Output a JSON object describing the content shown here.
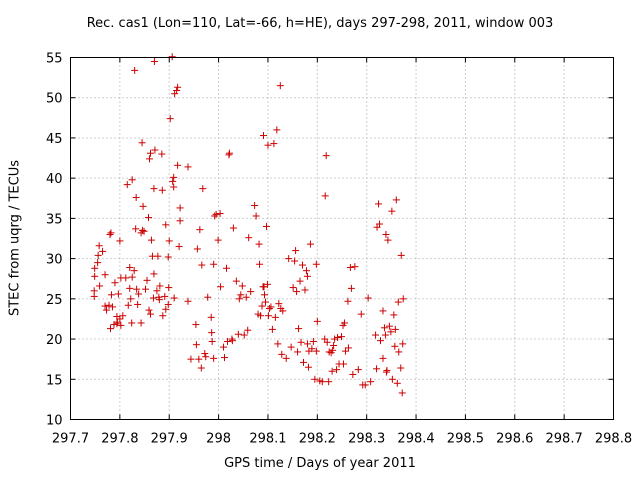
{
  "chart_data": {
    "type": "scatter",
    "title": "Rec. cas1 (Lon=110, Lat=-66, h=HE), days 297-298, 2011, window 003",
    "xlabel": "GPS time / Days of year 2011",
    "ylabel": "STEC from uqrg / TECUs",
    "xlim": [
      297.7,
      298.8
    ],
    "ylim": [
      10,
      55
    ],
    "xticks": [
      "297.7",
      "297.8",
      "297.9",
      "298",
      "298.1",
      "298.2",
      "298.3",
      "298.4",
      "298.5",
      "298.6",
      "298.7",
      "298.8"
    ],
    "yticks": [
      "10",
      "15",
      "20",
      "25",
      "30",
      "35",
      "40",
      "45",
      "50",
      "55"
    ],
    "marker": "+",
    "marker_color": "#cc0000",
    "grid": true,
    "points": [
      [
        297.748,
        25.3
      ],
      [
        297.748,
        26.0
      ],
      [
        297.749,
        27.8
      ],
      [
        297.749,
        28.8
      ],
      [
        297.755,
        29.5
      ],
      [
        297.756,
        30.4
      ],
      [
        297.758,
        31.6
      ],
      [
        297.759,
        26.6
      ],
      [
        297.765,
        30.9
      ],
      [
        297.77,
        24.1
      ],
      [
        297.77,
        28.0
      ],
      [
        297.773,
        23.6
      ],
      [
        297.778,
        24.2
      ],
      [
        297.78,
        33.0
      ],
      [
        297.781,
        21.3
      ],
      [
        297.782,
        33.2
      ],
      [
        297.783,
        25.5
      ],
      [
        297.785,
        24.0
      ],
      [
        297.788,
        21.8
      ],
      [
        297.79,
        27.0
      ],
      [
        297.794,
        22.8
      ],
      [
        297.794,
        21.9
      ],
      [
        297.795,
        22.1
      ],
      [
        297.797,
        25.6
      ],
      [
        297.8,
        22.5
      ],
      [
        297.8,
        32.2
      ],
      [
        297.802,
        21.7
      ],
      [
        297.802,
        27.6
      ],
      [
        297.806,
        22.9
      ],
      [
        297.812,
        27.6
      ],
      [
        297.815,
        39.2
      ],
      [
        297.817,
        24.2
      ],
      [
        297.82,
        26.3
      ],
      [
        297.82,
        28.9
      ],
      [
        297.822,
        25.0
      ],
      [
        297.824,
        22.0
      ],
      [
        297.825,
        39.8
      ],
      [
        297.825,
        27.7
      ],
      [
        297.829,
        28.5
      ],
      [
        297.83,
        53.4
      ],
      [
        297.832,
        33.7
      ],
      [
        297.833,
        37.6
      ],
      [
        297.834,
        26.2
      ],
      [
        297.836,
        24.3
      ],
      [
        297.838,
        25.6
      ],
      [
        297.843,
        33.2
      ],
      [
        297.843,
        22.0
      ],
      [
        297.845,
        44.4
      ],
      [
        297.846,
        33.5
      ],
      [
        297.847,
        36.5
      ],
      [
        297.849,
        33.4
      ],
      [
        297.852,
        26.2
      ],
      [
        297.855,
        27.3
      ],
      [
        297.858,
        35.1
      ],
      [
        297.859,
        23.6
      ],
      [
        297.86,
        42.4
      ],
      [
        297.862,
        43.1
      ],
      [
        297.862,
        23.1
      ],
      [
        297.864,
        32.3
      ],
      [
        297.866,
        30.3
      ],
      [
        297.868,
        25.1
      ],
      [
        297.869,
        28.1
      ],
      [
        297.869,
        38.7
      ],
      [
        297.87,
        54.5
      ],
      [
        297.871,
        43.5
      ],
      [
        297.875,
        26.0
      ],
      [
        297.877,
        30.3
      ],
      [
        297.879,
        25.2
      ],
      [
        297.88,
        24.9
      ],
      [
        297.881,
        26.6
      ],
      [
        297.885,
        43.0
      ],
      [
        297.886,
        38.5
      ],
      [
        297.887,
        22.9
      ],
      [
        297.891,
        25.3
      ],
      [
        297.893,
        34.2
      ],
      [
        297.893,
        23.7
      ],
      [
        297.898,
        24.3
      ],
      [
        297.898,
        30.2
      ],
      [
        297.899,
        26.4
      ],
      [
        297.9,
        32.2
      ],
      [
        297.902,
        47.4
      ],
      [
        297.906,
        55.1
      ],
      [
        297.907,
        39.6
      ],
      [
        297.909,
        40.1
      ],
      [
        297.909,
        38.9
      ],
      [
        297.91,
        25.1
      ],
      [
        297.911,
        50.5
      ],
      [
        297.915,
        50.9
      ],
      [
        297.917,
        41.6
      ],
      [
        297.917,
        51.3
      ],
      [
        297.92,
        31.5
      ],
      [
        297.922,
        36.3
      ],
      [
        297.922,
        34.7
      ],
      [
        297.938,
        41.4
      ],
      [
        297.938,
        24.7
      ],
      [
        297.944,
        17.5
      ],
      [
        297.954,
        21.8
      ],
      [
        297.955,
        19.3
      ],
      [
        297.957,
        31.2
      ],
      [
        297.96,
        17.5
      ],
      [
        297.962,
        33.6
      ],
      [
        297.965,
        16.4
      ],
      [
        297.966,
        29.2
      ],
      [
        297.968,
        38.7
      ],
      [
        297.972,
        18.2
      ],
      [
        297.974,
        17.8
      ],
      [
        297.978,
        25.2
      ],
      [
        297.985,
        22.7
      ],
      [
        297.986,
        20.8
      ],
      [
        297.987,
        19.7
      ],
      [
        297.99,
        29.3
      ],
      [
        297.99,
        17.6
      ],
      [
        297.992,
        35.3
      ],
      [
        297.995,
        35.5
      ],
      [
        297.999,
        32.3
      ],
      [
        298.003,
        35.6
      ],
      [
        298.004,
        26.5
      ],
      [
        298.01,
        19.0
      ],
      [
        298.012,
        17.7
      ],
      [
        298.016,
        28.8
      ],
      [
        298.018,
        19.7
      ],
      [
        298.021,
        42.9
      ],
      [
        298.022,
        43.1
      ],
      [
        298.027,
        20.0
      ],
      [
        298.028,
        19.8
      ],
      [
        298.03,
        33.8
      ],
      [
        298.036,
        27.2
      ],
      [
        298.04,
        20.6
      ],
      [
        298.042,
        25.0
      ],
      [
        298.045,
        25.5
      ],
      [
        298.048,
        26.6
      ],
      [
        298.052,
        20.5
      ],
      [
        298.056,
        25.2
      ],
      [
        298.059,
        21.1
      ],
      [
        298.061,
        32.6
      ],
      [
        298.065,
        25.9
      ],
      [
        298.073,
        36.6
      ],
      [
        298.076,
        35.3
      ],
      [
        298.08,
        23.1
      ],
      [
        298.082,
        31.8
      ],
      [
        298.083,
        29.3
      ],
      [
        298.085,
        22.9
      ],
      [
        298.088,
        24.1
      ],
      [
        298.09,
        26.5
      ],
      [
        298.091,
        45.3
      ],
      [
        298.092,
        26.5
      ],
      [
        298.093,
        25.5
      ],
      [
        298.095,
        24.6
      ],
      [
        298.097,
        34.0
      ],
      [
        298.099,
        26.8
      ],
      [
        298.1,
        44.1
      ],
      [
        298.101,
        22.9
      ],
      [
        298.103,
        23.8
      ],
      [
        298.106,
        24.0
      ],
      [
        298.109,
        21.2
      ],
      [
        298.112,
        44.3
      ],
      [
        298.115,
        22.7
      ],
      [
        298.118,
        46.0
      ],
      [
        298.12,
        19.4
      ],
      [
        298.122,
        24.4
      ],
      [
        298.125,
        51.5
      ],
      [
        298.126,
        23.8
      ],
      [
        298.128,
        18.1
      ],
      [
        298.13,
        23.5
      ],
      [
        298.137,
        17.6
      ],
      [
        298.142,
        30.0
      ],
      [
        298.147,
        19.0
      ],
      [
        298.151,
        26.4
      ],
      [
        298.154,
        29.7
      ],
      [
        298.156,
        31.0
      ],
      [
        298.158,
        25.9
      ],
      [
        298.16,
        18.4
      ],
      [
        298.162,
        21.3
      ],
      [
        298.165,
        27.2
      ],
      [
        298.167,
        19.6
      ],
      [
        298.17,
        29.2
      ],
      [
        298.172,
        17.1
      ],
      [
        298.175,
        26.1
      ],
      [
        298.178,
        28.5
      ],
      [
        298.18,
        27.8
      ],
      [
        298.18,
        19.4
      ],
      [
        298.182,
        16.5
      ],
      [
        298.183,
        18.5
      ],
      [
        298.186,
        31.8
      ],
      [
        298.189,
        18.8
      ],
      [
        298.192,
        19.7
      ],
      [
        298.195,
        15.0
      ],
      [
        298.198,
        29.3
      ],
      [
        298.198,
        18.5
      ],
      [
        298.2,
        22.2
      ],
      [
        298.205,
        14.8
      ],
      [
        298.21,
        14.7
      ],
      [
        298.215,
        20.0
      ],
      [
        298.216,
        37.8
      ],
      [
        298.218,
        42.8
      ],
      [
        298.22,
        19.6
      ],
      [
        298.223,
        14.7
      ],
      [
        298.224,
        18.4
      ],
      [
        298.228,
        18.3
      ],
      [
        298.23,
        16.0
      ],
      [
        298.231,
        18.6
      ],
      [
        298.233,
        19.2
      ],
      [
        298.235,
        20.0
      ],
      [
        298.239,
        16.2
      ],
      [
        298.241,
        20.2
      ],
      [
        298.244,
        16.9
      ],
      [
        298.249,
        20.3
      ],
      [
        298.252,
        21.7
      ],
      [
        298.253,
        16.9
      ],
      [
        298.255,
        22.0
      ],
      [
        298.257,
        18.5
      ],
      [
        298.262,
        24.7
      ],
      [
        298.263,
        18.9
      ],
      [
        298.267,
        28.9
      ],
      [
        298.269,
        26.3
      ],
      [
        298.272,
        15.6
      ],
      [
        298.276,
        29.0
      ],
      [
        298.283,
        16.2
      ],
      [
        298.289,
        23.1
      ],
      [
        298.292,
        14.3
      ],
      [
        298.297,
        14.3
      ],
      [
        298.303,
        25.1
      ],
      [
        298.308,
        14.7
      ],
      [
        298.318,
        20.5
      ],
      [
        298.32,
        16.3
      ],
      [
        298.321,
        33.9
      ],
      [
        298.324,
        36.8
      ],
      [
        298.326,
        34.3
      ],
      [
        298.328,
        19.8
      ],
      [
        298.333,
        23.5
      ],
      [
        298.333,
        17.6
      ],
      [
        298.336,
        21.4
      ],
      [
        298.338,
        20.5
      ],
      [
        298.339,
        33.0
      ],
      [
        298.34,
        15.9
      ],
      [
        298.341,
        16.1
      ],
      [
        298.343,
        32.3
      ],
      [
        298.346,
        21.6
      ],
      [
        298.349,
        20.9
      ],
      [
        298.351,
        35.9
      ],
      [
        298.352,
        15.0
      ],
      [
        298.355,
        23.0
      ],
      [
        298.357,
        19.1
      ],
      [
        298.358,
        21.2
      ],
      [
        298.36,
        37.3
      ],
      [
        298.362,
        14.5
      ],
      [
        298.364,
        24.6
      ],
      [
        298.365,
        18.4
      ],
      [
        298.369,
        16.4
      ],
      [
        298.37,
        30.4
      ],
      [
        298.372,
        13.3
      ],
      [
        298.373,
        19.4
      ],
      [
        298.374,
        25.0
      ]
    ]
  }
}
